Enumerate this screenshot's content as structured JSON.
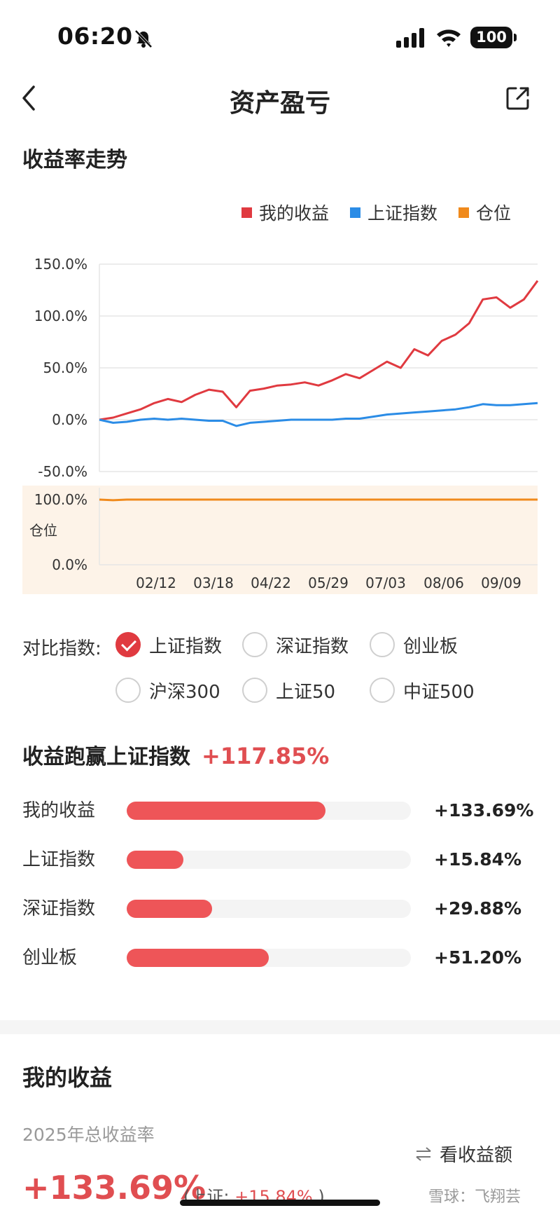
{
  "status_bar": {
    "time": "06:20",
    "battery": "100"
  },
  "nav": {
    "title": "资产盈亏"
  },
  "trend": {
    "title": "收益率走势"
  },
  "legend": [
    {
      "label": "我的收益",
      "color": "#e03a40"
    },
    {
      "label": "上证指数",
      "color": "#2b8ce6"
    },
    {
      "label": "仓位",
      "color": "#f08a1c"
    }
  ],
  "chart_data": {
    "type": "line",
    "y_ticks": [
      "150.0%",
      "100.0%",
      "50.0%",
      "0.0%",
      "-50.0%"
    ],
    "ylim": [
      -50,
      150
    ],
    "position_ticks": [
      "100.0%",
      "0.0%"
    ],
    "position_label": "仓位",
    "x_ticks": [
      "02/12",
      "03/18",
      "04/22",
      "05/29",
      "07/03",
      "08/06",
      "09/09"
    ],
    "series": [
      {
        "name": "我的收益",
        "color": "#e03a40",
        "values": [
          0,
          2,
          6,
          10,
          16,
          20,
          17,
          24,
          29,
          27,
          12,
          28,
          30,
          33,
          34,
          36,
          33,
          38,
          44,
          40,
          48,
          56,
          50,
          68,
          62,
          76,
          82,
          93,
          116,
          118,
          108,
          116,
          134
        ]
      },
      {
        "name": "上证指数",
        "color": "#2b8ce6",
        "values": [
          0,
          -3,
          -2,
          0,
          1,
          0,
          1,
          0,
          -1,
          -1,
          -6,
          -3,
          -2,
          -1,
          0,
          0,
          0,
          0,
          1,
          1,
          3,
          5,
          6,
          7,
          8,
          9,
          10,
          12,
          15,
          14,
          14,
          15,
          16
        ]
      },
      {
        "name": "仓位",
        "color": "#f08a1c",
        "values": [
          100,
          99,
          100,
          100,
          100,
          100,
          100,
          100,
          100,
          100,
          100,
          100,
          100,
          100,
          100,
          100,
          100,
          100,
          100,
          100,
          100,
          100,
          100,
          100,
          100,
          100,
          100,
          100,
          100,
          100,
          100,
          100,
          100
        ]
      }
    ]
  },
  "compare": {
    "label": "对比指数:",
    "options": [
      {
        "label": "上证指数",
        "checked": true
      },
      {
        "label": "深证指数",
        "checked": false
      },
      {
        "label": "创业板",
        "checked": false
      },
      {
        "label": "沪深300",
        "checked": false
      },
      {
        "label": "上证50",
        "checked": false
      },
      {
        "label": "中证500",
        "checked": false
      }
    ]
  },
  "outperform": {
    "title": "收益跑赢上证指数",
    "value": "+117.85%",
    "rows": [
      {
        "label": "我的收益",
        "value": "+133.69%",
        "fill": 0.7
      },
      {
        "label": "上证指数",
        "value": "+15.84%",
        "fill": 0.2
      },
      {
        "label": "深证指数",
        "value": "+29.88%",
        "fill": 0.3
      },
      {
        "label": "创业板",
        "value": "+51.20%",
        "fill": 0.5
      }
    ]
  },
  "my_returns": {
    "title": "我的收益",
    "year_label": "2025年总收益率",
    "toggle": "看收益额",
    "value": "+133.69%",
    "compare_prefix": "(上证:",
    "compare_value": "+15.84%",
    "compare_suffix": ")"
  },
  "watermark": "雪球：飞翔芸"
}
